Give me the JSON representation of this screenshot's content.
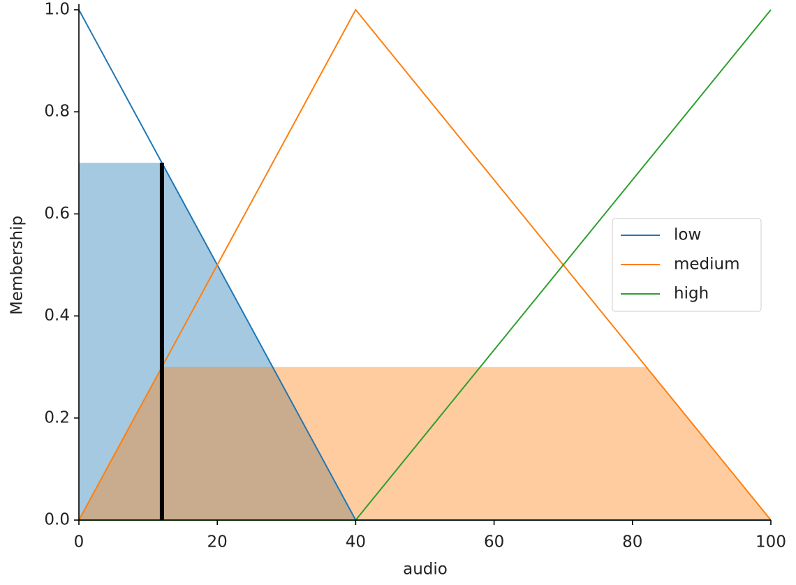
{
  "chart_data": {
    "type": "line",
    "xlabel": "audio",
    "ylabel": "Membership",
    "x": [
      0,
      40,
      100
    ],
    "series": [
      {
        "name": "low",
        "color": "#1f77b4",
        "values": [
          1,
          0,
          0
        ],
        "fill_level": 0.7
      },
      {
        "name": "medium",
        "color": "#ff7f0e",
        "values": [
          0,
          1,
          0
        ],
        "fill_level": 0.3
      },
      {
        "name": "high",
        "color": "#2ca02c",
        "values": [
          0,
          0,
          1
        ]
      }
    ],
    "input": {
      "x": 12,
      "membership": 0.7,
      "color": "#000000"
    },
    "xlim": [
      0,
      100
    ],
    "xticks": [
      0,
      20,
      40,
      60,
      80,
      100
    ],
    "ylim": [
      0,
      1
    ],
    "yticks": [
      {
        "value": 0,
        "label": "0.0"
      },
      0.2,
      0.4,
      0.6,
      0.8,
      {
        "value": 1,
        "label": "1.0"
      }
    ],
    "legend": "center right",
    "grid": false
  }
}
